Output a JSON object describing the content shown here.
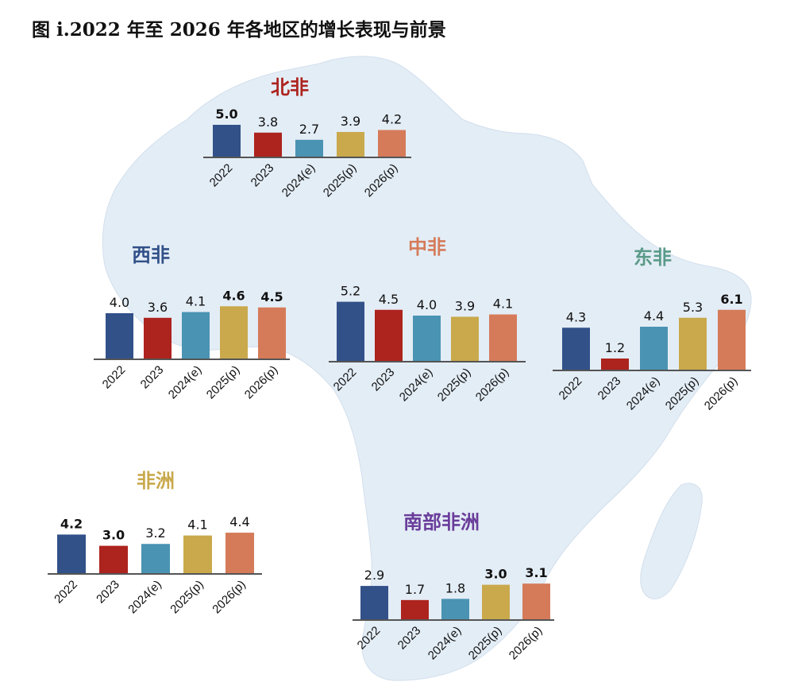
{
  "figure_title": "图 i.2022 年至 2026 年各地区的增长表现与前景",
  "colors": {
    "map": "#e3edf6",
    "axis": "#555555",
    "series": [
      "#325189",
      "#ad231e",
      "#4a93b3",
      "#c9a94c",
      "#d57b5a"
    ]
  },
  "chart_data": [
    {
      "type": "bar",
      "title": "北非",
      "title_color": "#ad231e",
      "categories": [
        "2022",
        "2023",
        "2024(e)",
        "2025(p)",
        "2026(p)"
      ],
      "values": [
        5.0,
        3.8,
        2.7,
        3.9,
        4.2
      ],
      "value_labels": [
        "5.0",
        "3.8",
        "2.7",
        "3.9",
        "4.2"
      ],
      "bold_value_labels": [
        true,
        false,
        false,
        false,
        false
      ],
      "ylabel": "",
      "xlabel": "",
      "ylim": [
        0,
        6.5
      ]
    },
    {
      "type": "bar",
      "title": "西非",
      "title_color": "#325189",
      "categories": [
        "2022",
        "2023",
        "2024(e)",
        "2025(p)",
        "2026(p)"
      ],
      "values": [
        4.0,
        3.6,
        4.1,
        4.6,
        4.5
      ],
      "value_labels": [
        "4.0",
        "3.6",
        "4.1",
        "4.6",
        "4.5"
      ],
      "bold_value_labels": [
        false,
        false,
        false,
        true,
        true
      ],
      "ylabel": "",
      "xlabel": "",
      "ylim": [
        0,
        6.5
      ]
    },
    {
      "type": "bar",
      "title": "中非",
      "title_color": "#d57b5a",
      "categories": [
        "2022",
        "2023",
        "2024(e)",
        "2025(p)",
        "2026(p)"
      ],
      "values": [
        5.2,
        4.5,
        4.0,
        3.9,
        4.1
      ],
      "value_labels": [
        "5.2",
        "4.5",
        "4.0",
        "3.9",
        "4.1"
      ],
      "bold_value_labels": [
        false,
        false,
        false,
        false,
        false
      ],
      "ylabel": "",
      "xlabel": "",
      "ylim": [
        0,
        6.5
      ]
    },
    {
      "type": "bar",
      "title": "东非",
      "title_color": "#5a9a88",
      "categories": [
        "2022",
        "2023",
        "2024(e)",
        "2025(p)",
        "2026(p)"
      ],
      "values": [
        4.3,
        1.2,
        4.4,
        5.3,
        6.1
      ],
      "value_labels": [
        "4.3",
        "1.2",
        "4.4",
        "5.3",
        "6.1"
      ],
      "bold_value_labels": [
        false,
        false,
        false,
        false,
        true
      ],
      "ylabel": "",
      "xlabel": "",
      "ylim": [
        0,
        6.5
      ]
    },
    {
      "type": "bar",
      "title": "非洲",
      "title_color": "#c9a94c",
      "categories": [
        "2022",
        "2023",
        "2024(e)",
        "2025(p)",
        "2026(p)"
      ],
      "values": [
        4.2,
        3.0,
        3.2,
        4.1,
        4.4
      ],
      "value_labels": [
        "4.2",
        "3.0",
        "3.2",
        "4.1",
        "4.4"
      ],
      "bold_value_labels": [
        true,
        true,
        false,
        false,
        false
      ],
      "ylabel": "",
      "xlabel": "",
      "ylim": [
        0,
        6.5
      ]
    },
    {
      "type": "bar",
      "title": "南部非洲",
      "title_color": "#6a3d9a",
      "categories": [
        "2022",
        "2023",
        "2024(e)",
        "2025(p)",
        "2026(p)"
      ],
      "values": [
        2.9,
        1.7,
        1.8,
        3.0,
        3.1
      ],
      "value_labels": [
        "2.9",
        "1.7",
        "1.8",
        "3.0",
        "3.1"
      ],
      "bold_value_labels": [
        false,
        false,
        false,
        true,
        true
      ],
      "ylabel": "",
      "xlabel": "",
      "ylim": [
        0,
        6.5
      ]
    }
  ]
}
